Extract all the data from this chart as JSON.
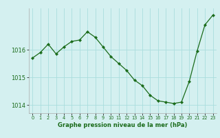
{
  "x": [
    0,
    1,
    2,
    3,
    4,
    5,
    6,
    7,
    8,
    9,
    10,
    11,
    12,
    13,
    14,
    15,
    16,
    17,
    18,
    19,
    20,
    21,
    22,
    23
  ],
  "y": [
    1015.7,
    1015.9,
    1016.2,
    1015.85,
    1016.1,
    1016.3,
    1016.35,
    1016.65,
    1016.45,
    1016.1,
    1015.75,
    1015.5,
    1015.25,
    1014.9,
    1014.7,
    1014.35,
    1014.15,
    1014.1,
    1014.05,
    1014.1,
    1014.85,
    1015.95,
    1016.9,
    1017.25
  ],
  "line_color": "#1a6b1a",
  "marker": "D",
  "marker_size": 2.2,
  "bg_color": "#d4f0f0",
  "grid_color": "#aadddd",
  "xlabel": "Graphe pression niveau de la mer (hPa)",
  "xlabel_color": "#1a6b1a",
  "tick_label_color": "#1a6b1a",
  "ylim": [
    1013.7,
    1017.5
  ],
  "yticks": [
    1014,
    1015,
    1016
  ],
  "xlim": [
    -0.5,
    23.5
  ],
  "xticks": [
    0,
    1,
    2,
    3,
    4,
    5,
    6,
    7,
    8,
    9,
    10,
    11,
    12,
    13,
    14,
    15,
    16,
    17,
    18,
    19,
    20,
    21,
    22,
    23
  ]
}
